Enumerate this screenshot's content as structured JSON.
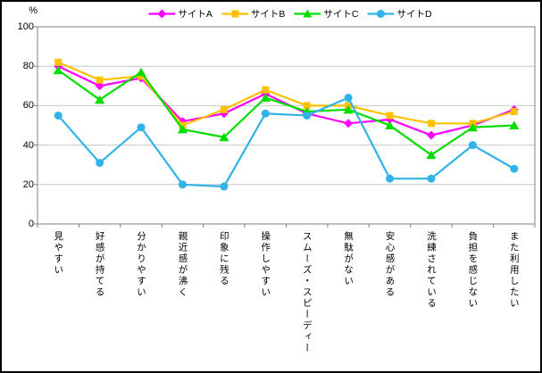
{
  "window": {
    "background": "#FFFFFF",
    "border_color": "#000000"
  },
  "chart_data": {
    "type": "line",
    "title": "",
    "xlabel": "",
    "ylabel": "%",
    "ylim": [
      0,
      100
    ],
    "yticks": [
      0,
      20,
      40,
      60,
      80,
      100
    ],
    "grid": true,
    "legend_position": "top",
    "gridline_color": "#C6C6C6",
    "axis_color": "#808080",
    "categories": [
      "見やすい",
      "好感が持てる",
      "分かりやすい",
      "親近感が沸く",
      "印象に残る",
      "操作しやすい",
      "スムーズ・スピーディー",
      "無駄がない",
      "安心感がある",
      "洗練されている",
      "負担を感じない",
      "また利用したい"
    ],
    "series": [
      {
        "name": "サイトA",
        "color": "#FF00FF",
        "marker": "diamond",
        "values": [
          80,
          70,
          74,
          52,
          56,
          66,
          56,
          51,
          53,
          45,
          50,
          58
        ]
      },
      {
        "name": "サイトB",
        "color": "#FFC000",
        "marker": "square",
        "values": [
          82,
          73,
          75,
          50,
          58,
          68,
          60,
          60,
          55,
          51,
          51,
          57
        ]
      },
      {
        "name": "サイトC",
        "color": "#00DD00",
        "marker": "triangle",
        "values": [
          78,
          63,
          77,
          48,
          44,
          64,
          57,
          58,
          50,
          35,
          49,
          50
        ]
      },
      {
        "name": "サイトD",
        "color": "#2FB3E8",
        "marker": "circle",
        "values": [
          55,
          31,
          49,
          20,
          19,
          56,
          55,
          64,
          23,
          23,
          40,
          28
        ]
      }
    ]
  }
}
